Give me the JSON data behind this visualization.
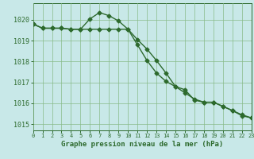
{
  "series1": {
    "x": [
      0,
      1,
      2,
      3,
      4,
      5,
      6,
      7,
      8,
      9,
      10,
      11,
      12,
      13,
      14,
      15,
      16,
      17,
      18,
      19,
      20,
      21,
      22,
      23
    ],
    "y": [
      1019.8,
      1019.6,
      1019.6,
      1019.6,
      1019.55,
      1019.55,
      1019.55,
      1019.55,
      1019.55,
      1019.55,
      1019.55,
      1018.8,
      1018.05,
      1017.45,
      1017.05,
      1016.8,
      1016.5,
      1016.2,
      1016.05,
      1016.05,
      1015.85,
      1015.65,
      1015.45,
      1015.3
    ]
  },
  "series2": {
    "x": [
      0,
      1,
      2,
      3,
      4,
      5,
      6,
      7,
      8,
      9,
      10,
      11,
      12,
      13,
      14,
      15,
      16,
      17,
      18,
      19,
      20,
      21,
      22,
      23
    ],
    "y": [
      1019.8,
      1019.6,
      1019.6,
      1019.6,
      1019.55,
      1019.55,
      1020.05,
      1020.35,
      1020.2,
      1019.95,
      1019.55,
      1019.05,
      1018.6,
      1018.05,
      1017.45,
      1016.8,
      1016.65,
      1016.15,
      1016.05,
      1016.05,
      1015.85,
      1015.65,
      1015.4,
      1015.3
    ]
  },
  "xlim": [
    0,
    23
  ],
  "ylim": [
    1014.7,
    1020.8
  ],
  "yticks": [
    1015,
    1016,
    1017,
    1018,
    1019,
    1020
  ],
  "xticks": [
    0,
    1,
    2,
    3,
    4,
    5,
    6,
    7,
    8,
    9,
    10,
    11,
    12,
    13,
    14,
    15,
    16,
    17,
    18,
    19,
    20,
    21,
    22,
    23
  ],
  "line_color": "#2d6a2d",
  "bg_color": "#c8e8e8",
  "grid_color": "#88bb88",
  "xlabel": "Graphe pression niveau de la mer (hPa)",
  "marker": "D",
  "marker_size": 2.5,
  "line_width": 1.0
}
